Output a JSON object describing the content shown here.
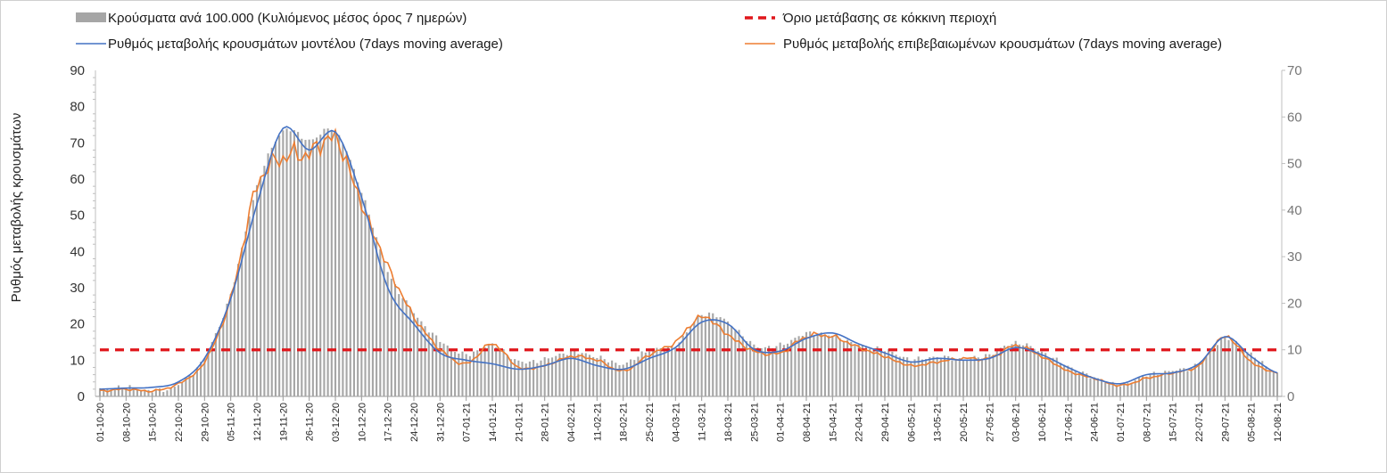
{
  "chart_data": {
    "type": "bar+line",
    "legend": {
      "bars": "Κρούσματα ανά 100.000 (Κυλιόμενος μέσος όρος 7 ημερών)",
      "threshold": "Όριο μετάβασης σε κόκκινη περιοχή",
      "model": "Ρυθμός μεταβολής κρουσμάτων μοντέλου (7days moving average)",
      "confirmed": "Ρυθμός μεταβολής επιβεβαιωμένων κρουσμάτων (7days moving average)"
    },
    "ylabel": "Ρυθμός μεταβολής κρουσμάτων",
    "ylim_left": [
      0,
      90
    ],
    "ylim_right": [
      0,
      70
    ],
    "yticks_left": [
      0,
      10,
      20,
      30,
      40,
      50,
      60,
      70,
      80,
      90
    ],
    "yticks_right": [
      0,
      10,
      20,
      30,
      40,
      50,
      60,
      70
    ],
    "threshold_value_right": 10,
    "start_date": "2020-10-01",
    "x_tick_labels": [
      "01-10-20",
      "08-10-20",
      "15-10-20",
      "22-10-20",
      "29-10-20",
      "05-11-20",
      "12-11-20",
      "19-11-20",
      "26-11-20",
      "03-12-20",
      "10-12-20",
      "17-12-20",
      "24-12-20",
      "31-12-20",
      "07-01-21",
      "14-01-21",
      "21-01-21",
      "28-01-21",
      "04-02-21",
      "11-02-21",
      "18-02-21",
      "25-02-21",
      "04-03-21",
      "11-03-21",
      "18-03-21",
      "25-03-21",
      "01-04-21",
      "08-04-21",
      "15-04-21",
      "22-04-21",
      "29-04-21",
      "06-05-21",
      "13-05-21",
      "20-05-21",
      "27-05-21",
      "03-06-21",
      "10-06-21",
      "17-06-21",
      "24-06-21",
      "01-07-21",
      "08-07-21",
      "15-07-21",
      "22-07-21",
      "29-07-21",
      "05-08-21",
      "12-08-21"
    ],
    "bars_weekly_right_axis": [
      1.5,
      2.0,
      1.2,
      2.5,
      8.5,
      22.0,
      45.0,
      57.0,
      55.0,
      57.0,
      44.0,
      27.0,
      18.0,
      12.0,
      9.0,
      11.0,
      7.5,
      8.0,
      9.5,
      8.5,
      7.0,
      10.0,
      11.0,
      17.5,
      16.0,
      11.0,
      11.0,
      13.5,
      13.0,
      11.0,
      10.0,
      8.0,
      8.5,
      8.0,
      9.0,
      11.5,
      9.5,
      6.5,
      4.0,
      2.5,
      4.5,
      5.5,
      7.0,
      12.5,
      9.0,
      5.0
    ],
    "model_weekly_left_axis": [
      2.0,
      2.3,
      2.5,
      4.0,
      10.5,
      27.0,
      53.0,
      74.0,
      68.0,
      73.0,
      55.0,
      30.0,
      20.0,
      12.0,
      10.0,
      9.0,
      7.5,
      8.5,
      10.5,
      8.5,
      7.5,
      10.5,
      13.5,
      20.5,
      20.0,
      13.0,
      12.5,
      16.0,
      17.5,
      14.5,
      12.0,
      9.5,
      10.5,
      10.0,
      10.5,
      13.5,
      11.5,
      8.0,
      5.0,
      3.5,
      6.0,
      6.5,
      9.0,
      16.5,
      11.0,
      6.5
    ],
    "confirmed_weekly_left_axis": [
      1.5,
      2.0,
      1.5,
      3.5,
      9.5,
      27.0,
      58.0,
      66.0,
      67.0,
      71.0,
      53.0,
      36.0,
      22.0,
      13.0,
      9.0,
      14.5,
      8.0,
      8.5,
      11.0,
      10.0,
      7.0,
      11.5,
      15.0,
      22.0,
      17.0,
      12.5,
      12.0,
      16.5,
      16.5,
      13.5,
      11.0,
      8.5,
      9.5,
      10.5,
      10.5,
      14.0,
      11.0,
      7.0,
      5.0,
      3.0,
      5.0,
      6.5,
      8.5,
      16.5,
      9.5,
      6.5
    ]
  }
}
